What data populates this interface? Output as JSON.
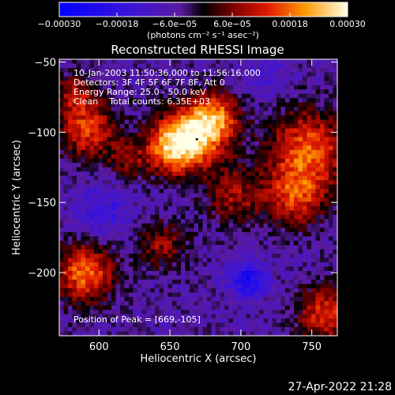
{
  "chart_data": {
    "type": "heatmap",
    "title": "Reconstructed RHESSI Image",
    "xlabel": "Heliocentric X (arcsec)",
    "ylabel": "Heliocentric Y (arcsec)",
    "xlim": [
      572,
      768
    ],
    "ylim": [
      -245,
      -48
    ],
    "x_ticks": [
      600,
      650,
      700,
      750
    ],
    "y_ticks": [
      -50,
      -100,
      -150,
      -200
    ],
    "x_tick_labels": [
      "600",
      "650",
      "700",
      "750"
    ],
    "y_tick_labels": [
      "−50",
      "−100",
      "−150",
      "−200"
    ],
    "colorbar": {
      "range": [
        -0.0003,
        0.0003
      ],
      "ticks": [
        -0.0003,
        -0.00018,
        -6e-05,
        6e-05,
        0.00018,
        0.0003
      ],
      "tick_labels": [
        "−0.00030",
        "−0.00018",
        "−6.0e−05",
        "6.0e−05",
        "0.00018",
        "0.00030"
      ],
      "units_label": "(photons cm⁻² s⁻¹ asec⁻²)"
    },
    "annotations": {
      "time_range": "10-Jan-2003 11:50:36.000 to 11:56:16.000",
      "detectors": "Detectors: 3F 4F 5F 6F 7F 8F, Att 0",
      "energy": "Energy Range: 25.0 - 50.0 keV",
      "method": "Clean    Total counts: 6.35E+03",
      "peak": "Position of Peak = [669,-105]"
    },
    "peak": [
      669,
      -105
    ],
    "sources": [
      {
        "x": 668,
        "y": -102,
        "amp": 0.00029,
        "r": 16
      },
      {
        "x": 650,
        "y": -112,
        "amp": 0.00022,
        "r": 13
      },
      {
        "x": 683,
        "y": -88,
        "amp": 0.00017,
        "r": 12
      },
      {
        "x": 748,
        "y": -112,
        "amp": 0.00022,
        "r": 20
      },
      {
        "x": 738,
        "y": -146,
        "amp": 0.00018,
        "r": 15
      },
      {
        "x": 695,
        "y": -145,
        "amp": 0.00014,
        "r": 14
      },
      {
        "x": 592,
        "y": -98,
        "amp": 0.0002,
        "r": 15
      },
      {
        "x": 583,
        "y": -72,
        "amp": 0.00013,
        "r": 10
      },
      {
        "x": 590,
        "y": -200,
        "amp": 0.00024,
        "r": 15
      },
      {
        "x": 645,
        "y": -180,
        "amp": 0.00013,
        "r": 12
      },
      {
        "x": 760,
        "y": -230,
        "amp": 0.0002,
        "r": 14
      },
      {
        "x": 620,
        "y": -120,
        "amp": 0.0001,
        "r": 10
      },
      {
        "x": 705,
        "y": -205,
        "amp": -0.00018,
        "r": 9
      },
      {
        "x": 602,
        "y": -158,
        "amp": -0.0001,
        "r": 14
      },
      {
        "x": 718,
        "y": -60,
        "amp": -6e-05,
        "r": 12
      }
    ]
  },
  "footer": {
    "timestamp": "27-Apr-2022 21:28"
  }
}
